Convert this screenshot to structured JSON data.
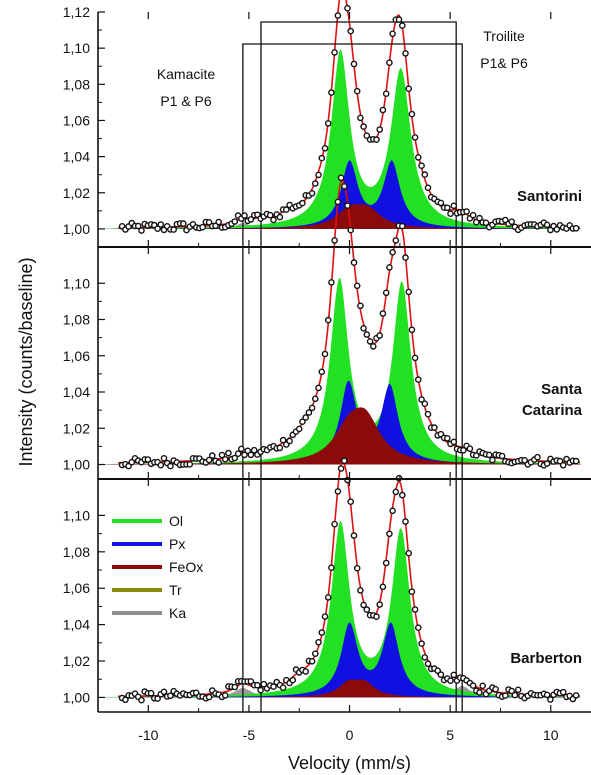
{
  "chart_data": {
    "type": "line",
    "xlabel": "Velocity (mm/s)",
    "ylabel": "Intensity (counts/baseline)",
    "xlim": [
      -12.5,
      12
    ],
    "x_ticks": [
      "-10",
      "-5",
      "0",
      "5",
      "10"
    ],
    "x_tick_values": [
      -10,
      -5,
      0,
      5,
      10
    ],
    "annotations": {
      "kamacite": [
        "Kamacite",
        "P1 & P6"
      ],
      "troilite": [
        "Troilite",
        "P1& P6"
      ],
      "kamacite_lines_x": [
        -5.3,
        5.6
      ],
      "troilite_lines_x": [
        -4.4,
        5.3
      ]
    },
    "legend": {
      "placement": "left, bottom panel",
      "entries": [
        {
          "label": "Ol",
          "color": "#22e022"
        },
        {
          "label": "Px",
          "color": "#1010e0"
        },
        {
          "label": "FeOx",
          "color": "#8b0a0a"
        },
        {
          "label": "Tr",
          "color": "#8a8a08"
        },
        {
          "label": "Ka",
          "color": "#909090"
        }
      ]
    },
    "fit_color": "#e01010",
    "panels": [
      {
        "sample": [
          "Santorini"
        ],
        "ylim": [
          0.99,
          1.12
        ],
        "y_ticks": [
          "1,00",
          "1,02",
          "1,04",
          "1,06",
          "1,08",
          "1,10",
          "1,12"
        ],
        "y_tick_values": [
          1.0,
          1.02,
          1.04,
          1.06,
          1.08,
          1.1,
          1.12
        ],
        "components": [
          {
            "name": "Ol",
            "peaks": [
              [
                -0.45,
                0.096,
                0.55
              ],
              [
                2.55,
                0.086,
                0.6
              ]
            ]
          },
          {
            "name": "Px",
            "peaks": [
              [
                0.0,
                0.036,
                0.5
              ],
              [
                2.1,
                0.036,
                0.5
              ]
            ]
          },
          {
            "name": "FeOx",
            "peaks": [
              [
                0.0,
                0.009,
                0.8
              ],
              [
                0.9,
                0.009,
                0.8
              ]
            ]
          },
          {
            "name": "Tr",
            "peaks": [
              [
                -4.4,
                0.002,
                0.4
              ],
              [
                -1.5,
                0.003,
                0.5
              ],
              [
                2.5,
                0.002,
                0.4
              ],
              [
                5.3,
                0.002,
                0.4
              ]
            ]
          },
          {
            "name": "Ka",
            "peaks": [
              [
                -5.3,
                0.003,
                0.4
              ],
              [
                -3.0,
                0.004,
                0.5
              ],
              [
                3.5,
                0.004,
                0.5
              ],
              [
                5.6,
                0.003,
                0.4
              ]
            ]
          }
        ]
      },
      {
        "sample": [
          "Santa",
          "Catarina"
        ],
        "ylim": [
          0.992,
          1.12
        ],
        "y_ticks": [
          "1,00",
          "1,02",
          "1,04",
          "1,06",
          "1,08",
          "1,10"
        ],
        "y_tick_values": [
          1.0,
          1.02,
          1.04,
          1.06,
          1.08,
          1.1
        ],
        "components": [
          {
            "name": "Ol",
            "peaks": [
              [
                -0.5,
                0.1,
                0.55
              ],
              [
                2.6,
                0.098,
                0.55
              ]
            ]
          },
          {
            "name": "Px",
            "peaks": [
              [
                -0.05,
                0.044,
                0.5
              ],
              [
                2.0,
                0.042,
                0.5
              ]
            ]
          },
          {
            "name": "FeOx",
            "peaks": [
              [
                -0.05,
                0.016,
                0.9
              ],
              [
                0.8,
                0.022,
                0.9
              ]
            ]
          },
          {
            "name": "Tr",
            "peaks": [
              [
                -2.0,
                0.007,
                1.4
              ],
              [
                3.2,
                0.005,
                1.2
              ]
            ]
          },
          {
            "name": "Ka",
            "peaks": [
              [
                -5.3,
                0.002,
                0.4
              ],
              [
                5.6,
                0.002,
                0.4
              ]
            ]
          }
        ]
      },
      {
        "sample": [
          "Barberton"
        ],
        "ylim": [
          0.992,
          1.12
        ],
        "y_ticks": [
          "1,00",
          "1,02",
          "1,04",
          "1,06",
          "1,08",
          "1,10"
        ],
        "y_tick_values": [
          1.0,
          1.02,
          1.04,
          1.06,
          1.08,
          1.1
        ],
        "components": [
          {
            "name": "Ol",
            "peaks": [
              [
                -0.45,
                0.094,
                0.55
              ],
              [
                2.55,
                0.09,
                0.55
              ]
            ]
          },
          {
            "name": "Px",
            "peaks": [
              [
                0.0,
                0.039,
                0.5
              ],
              [
                2.05,
                0.039,
                0.5
              ]
            ]
          },
          {
            "name": "FeOx",
            "peaks": [
              [
                -0.05,
                0.007,
                0.6
              ],
              [
                0.75,
                0.007,
                0.6
              ]
            ]
          },
          {
            "name": "Tr",
            "peaks": [
              [
                -4.4,
                0.001,
                0.4
              ],
              [
                5.3,
                0.001,
                0.4
              ]
            ]
          },
          {
            "name": "Ka",
            "peaks": [
              [
                -5.3,
                0.005,
                0.5
              ],
              [
                -2.5,
                0.004,
                0.6
              ],
              [
                3.2,
                0.004,
                0.6
              ],
              [
                5.6,
                0.006,
                0.5
              ]
            ]
          }
        ]
      }
    ]
  }
}
